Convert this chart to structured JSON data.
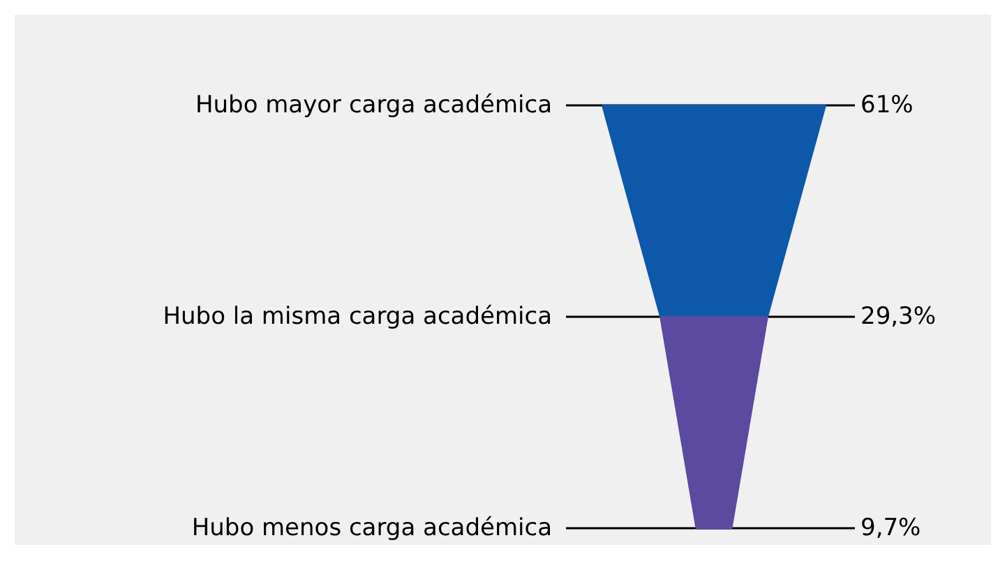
{
  "chart_data": {
    "type": "other",
    "categories": [
      "Hubo mayor carga académica",
      "Hubo la misma carga académica",
      "Hubo menos carga académica"
    ],
    "values": [
      61,
      29.3,
      9.7
    ],
    "value_labels": [
      "61%",
      "29,3%",
      "9,7%"
    ],
    "colors": [
      "#0d58a8",
      "#5b4a9f",
      "#5b4a9f"
    ]
  }
}
